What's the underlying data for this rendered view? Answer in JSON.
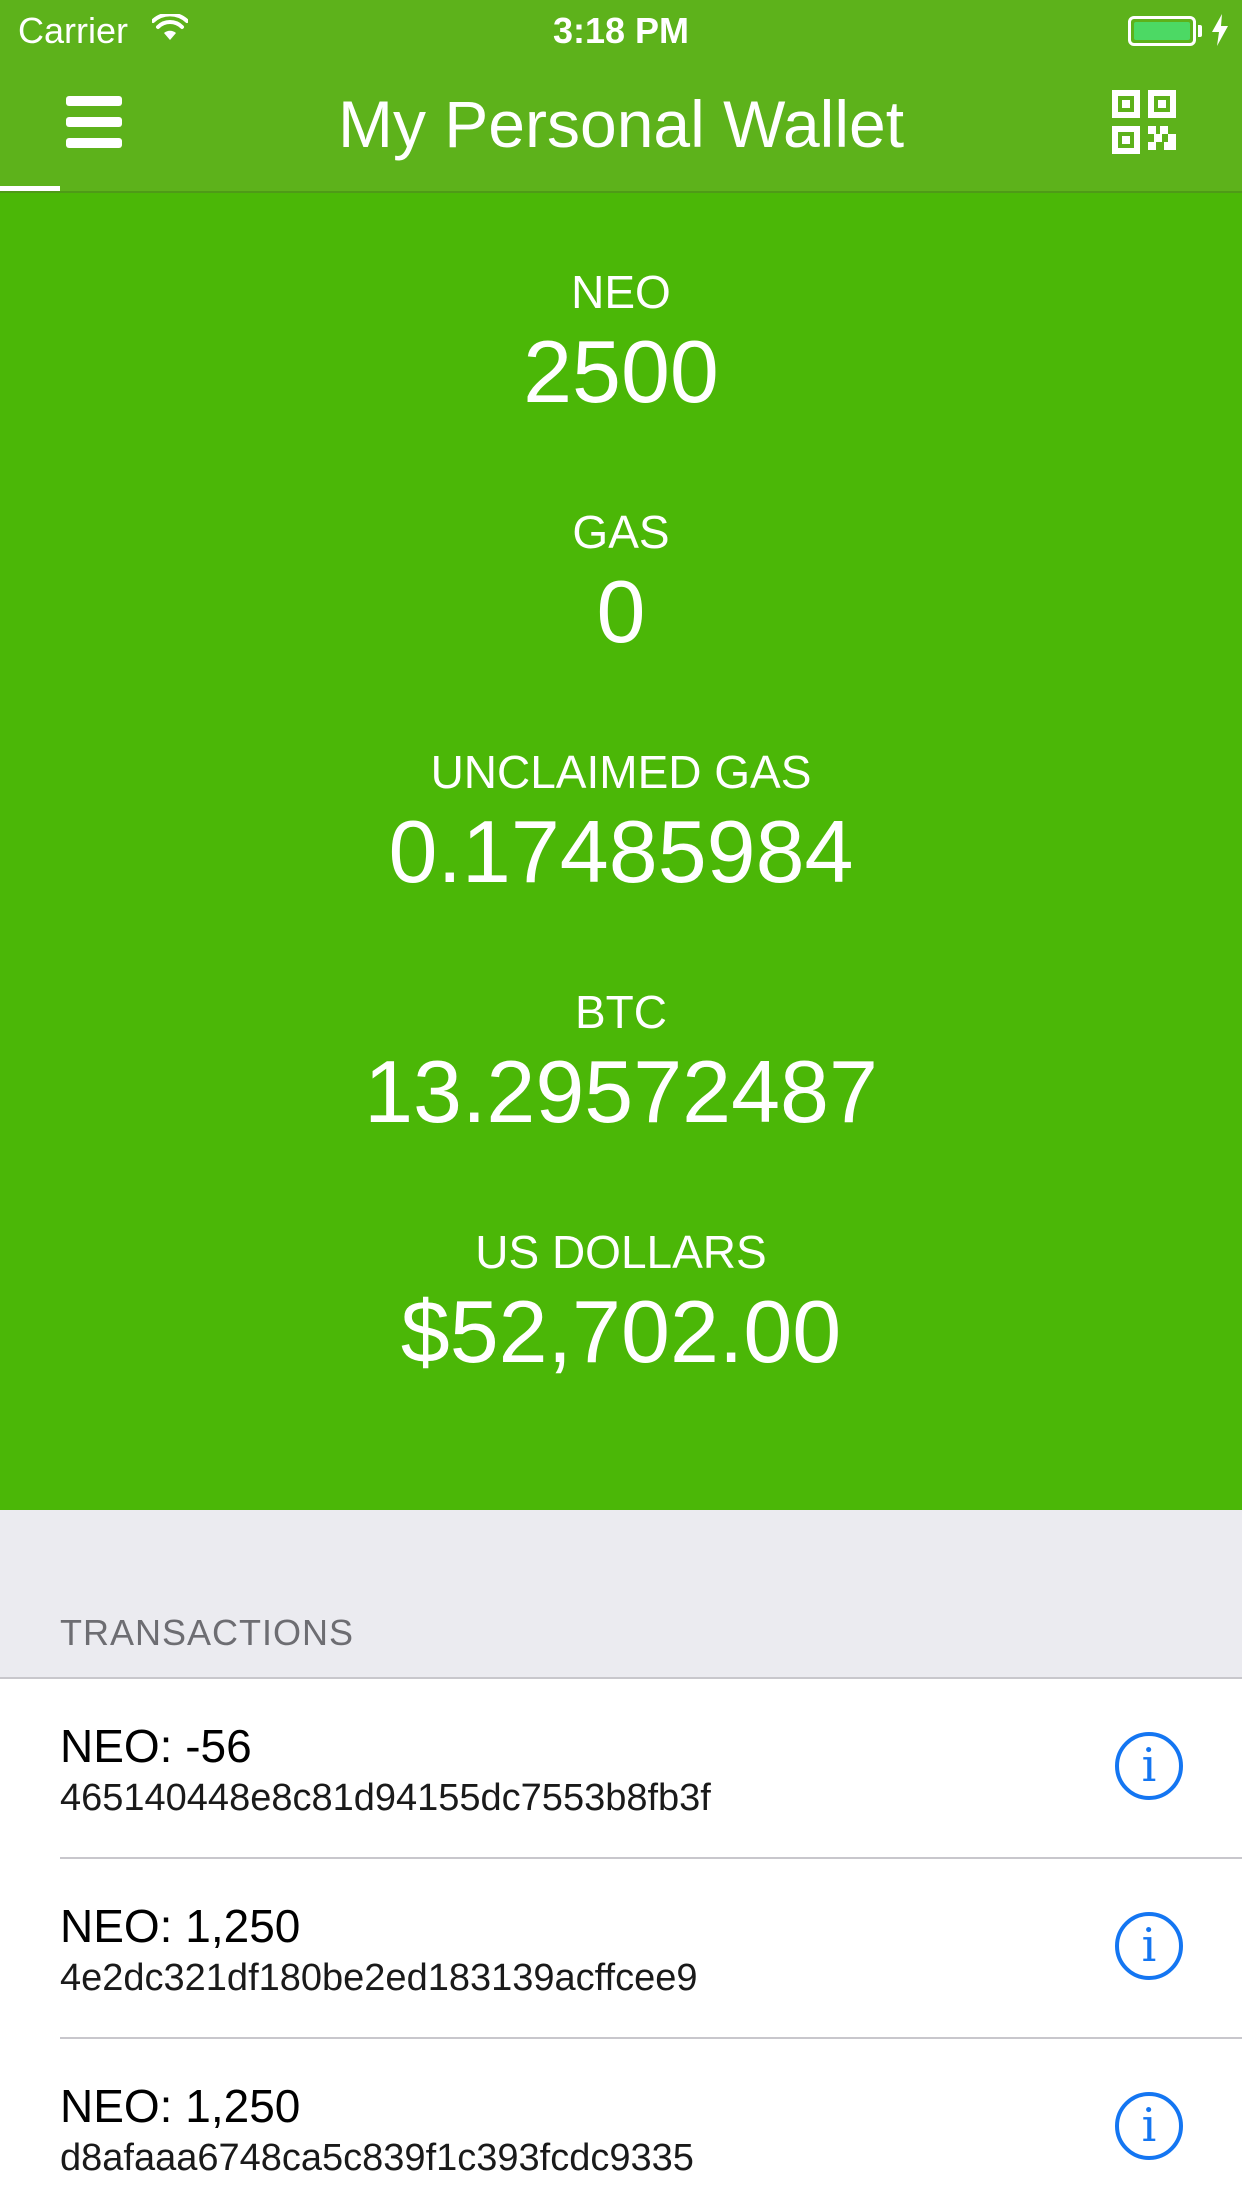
{
  "status_bar": {
    "carrier": "Carrier",
    "time": "3:18 PM",
    "battery_color": "#4cd964"
  },
  "nav": {
    "title": "My Personal Wallet",
    "menu_icon": "hamburger-menu-icon",
    "qr_icon": "qr-code-icon",
    "bar_color": "#5db21b"
  },
  "balances": {
    "panel_color": "#4bb707",
    "items": [
      {
        "label": "NEO",
        "value": "2500"
      },
      {
        "label": "GAS",
        "value": "0"
      },
      {
        "label": "UNCLAIMED GAS",
        "value": "0.17485984"
      },
      {
        "label": "BTC",
        "value": "13.29572487"
      },
      {
        "label": "US DOLLARS",
        "value": "$52,702.00"
      }
    ]
  },
  "transactions": {
    "header": "TRANSACTIONS",
    "info_icon_glyph": "i",
    "info_color": "#1476f2",
    "items": [
      {
        "amount": "NEO: -56",
        "hash": "465140448e8c81d94155dc7553b8fb3f"
      },
      {
        "amount": "NEO: 1,250",
        "hash": "4e2dc321df180be2ed183139acffcee9"
      },
      {
        "amount": "NEO: 1,250",
        "hash": "d8afaaa6748ca5c839f1c393fcdc9335"
      }
    ]
  }
}
